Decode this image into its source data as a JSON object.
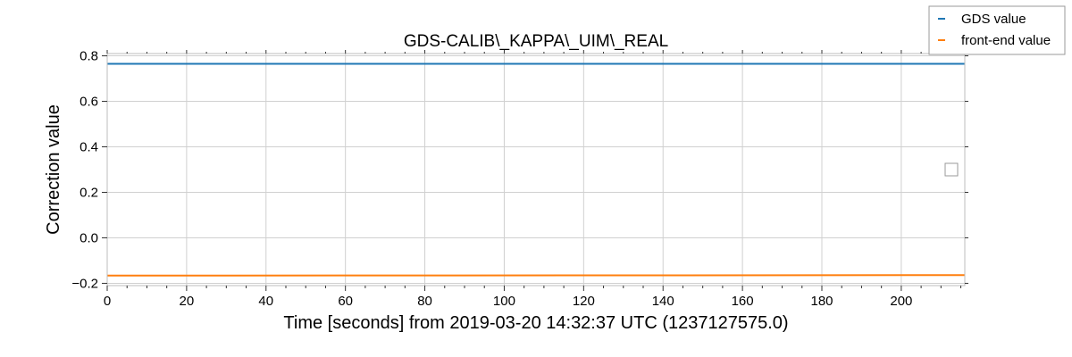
{
  "chart_data": {
    "type": "line",
    "title": "GDS-CALIB\\_KAPPA\\_UIM\\_REAL",
    "xlabel": "Time [seconds] from 2019-03-20 14:32:37 UTC (1237127575.0)",
    "ylabel": "Correction value",
    "xlim": [
      0,
      216
    ],
    "ylim": [
      -0.21,
      0.81
    ],
    "xticks": [
      0,
      20,
      40,
      60,
      80,
      100,
      120,
      140,
      160,
      180,
      200
    ],
    "yticks": [
      -0.2,
      0.0,
      0.2,
      0.4,
      0.6,
      0.8
    ],
    "ytick_labels": [
      "−0.2",
      "0.0",
      "0.2",
      "0.4",
      "0.6",
      "0.8"
    ],
    "x_minor_step": 5,
    "grid": true,
    "legend_position": "top-right outside",
    "series": [
      {
        "name": "GDS value",
        "color": "#1f77b4",
        "x": [
          0,
          216
        ],
        "y": [
          0.765,
          0.765
        ]
      },
      {
        "name": "front-end value",
        "color": "#ff7f0e",
        "x": [
          0,
          216
        ],
        "y": [
          -0.166,
          -0.164
        ]
      }
    ]
  }
}
